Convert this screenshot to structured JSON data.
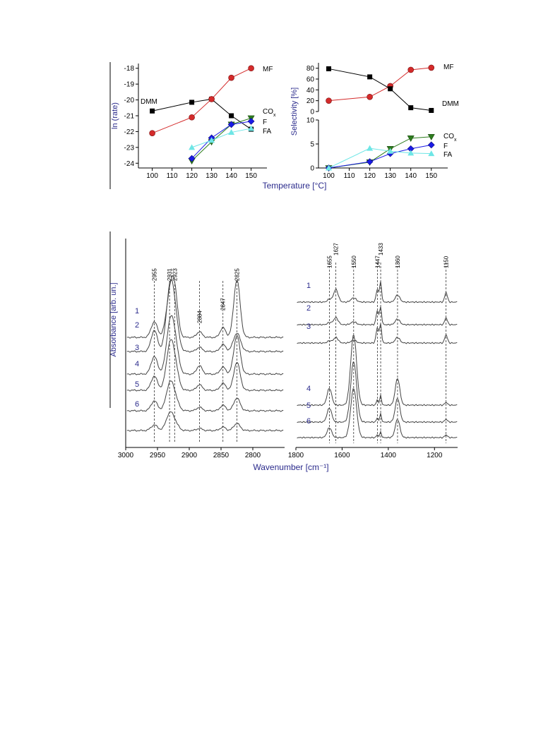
{
  "colors": {
    "axis": "#000000",
    "label": "#2b2b8c",
    "DMM": "#000000",
    "MF": "#d42a2a",
    "CO_x": "#2e7d1e",
    "F": "#1a1ae6",
    "FA": "#6ee6e6",
    "spectrum": "#444444"
  },
  "chart_data": [
    {
      "type": "line",
      "panel": "top-left",
      "xlabel": "Temperature [°C]",
      "ylabel": "ln (rate)",
      "xlim": [
        93,
        158
      ],
      "ylim": [
        -24.3,
        -17.7
      ],
      "xticks": [
        100,
        110,
        120,
        130,
        140,
        150
      ],
      "yticks": [
        -18,
        -19,
        -20,
        -21,
        -22,
        -23,
        -24
      ],
      "series": [
        {
          "name": "DMM",
          "key": "DMM",
          "marker": "square",
          "x": [
            100,
            120,
            130,
            140,
            150
          ],
          "y": [
            -20.7,
            -20.15,
            -19.95,
            -21.0,
            -21.85
          ]
        },
        {
          "name": "MF",
          "key": "MF",
          "marker": "circle",
          "x": [
            100,
            120,
            130,
            140,
            150
          ],
          "y": [
            -22.1,
            -21.1,
            -19.95,
            -18.6,
            -18.0
          ]
        },
        {
          "name": "CO",
          "sub": "x",
          "key": "CO_x",
          "marker": "triangle-down",
          "x": [
            120,
            130,
            140,
            150
          ],
          "y": [
            -23.85,
            -22.65,
            -21.55,
            -21.15
          ]
        },
        {
          "name": "F",
          "key": "F",
          "marker": "diamond",
          "x": [
            120,
            130,
            140,
            150
          ],
          "y": [
            -23.7,
            -22.4,
            -21.55,
            -21.35
          ]
        },
        {
          "name": "FA",
          "key": "FA",
          "marker": "triangle-up",
          "x": [
            120,
            130,
            140,
            150
          ],
          "y": [
            -23.0,
            -22.55,
            -22.05,
            -21.8
          ]
        }
      ]
    },
    {
      "type": "line",
      "panel": "top-right",
      "xlabel": "",
      "ylabel": "Selectivity [%]",
      "xlim": [
        95,
        158
      ],
      "xticks": [
        100,
        110,
        120,
        130,
        140,
        150
      ],
      "upper_ylim": [
        0,
        90
      ],
      "upper_yticks": [
        0,
        20,
        40,
        60,
        80
      ],
      "lower_ylim": [
        0,
        10
      ],
      "lower_yticks": [
        0,
        5,
        10
      ],
      "upper_series": [
        {
          "name": "MF",
          "key": "MF",
          "marker": "circle",
          "x": [
            100,
            120,
            130,
            140,
            150
          ],
          "y": [
            20,
            27,
            47,
            77,
            81
          ]
        },
        {
          "name": "DMM",
          "key": "DMM",
          "marker": "square",
          "x": [
            100,
            120,
            130,
            140,
            150
          ],
          "y": [
            79,
            64,
            42,
            7,
            2
          ]
        }
      ],
      "lower_series": [
        {
          "name": "CO",
          "sub": "x",
          "key": "CO_x",
          "marker": "triangle-down",
          "x": [
            100,
            120,
            130,
            140,
            150
          ],
          "y": [
            0.0,
            1.2,
            4.0,
            6.2,
            6.5
          ]
        },
        {
          "name": "F",
          "key": "F",
          "marker": "diamond",
          "x": [
            100,
            120,
            130,
            140,
            150
          ],
          "y": [
            0.0,
            1.3,
            3.0,
            4.0,
            4.8
          ]
        },
        {
          "name": "FA",
          "key": "FA",
          "marker": "triangle-up",
          "x": [
            100,
            120,
            130,
            140,
            150
          ],
          "y": [
            0.0,
            4.1,
            3.5,
            3.1,
            3.0
          ]
        }
      ]
    },
    {
      "type": "line",
      "panel": "bottom-left",
      "xlabel": "Wavenumber [cm⁻¹]",
      "ylabel": "Absorbance [arb. un.]",
      "xlim": [
        3000,
        2750
      ],
      "xticks": [
        3000,
        2950,
        2900,
        2850,
        2800
      ],
      "peak_labels": [
        2955,
        2931,
        2923,
        2884,
        2847,
        2825
      ],
      "spectra": [
        "1",
        "2",
        "3",
        "4",
        "5",
        "6"
      ]
    },
    {
      "type": "line",
      "panel": "bottom-right",
      "xlabel": "Wavenumber [cm⁻¹]",
      "xlim": [
        1800,
        1100
      ],
      "xticks": [
        1800,
        1600,
        1400,
        1200
      ],
      "peak_labels": [
        1655,
        1627,
        1550,
        1447,
        1433,
        1360,
        1150
      ],
      "spectra": [
        "1",
        "2",
        "3",
        "4",
        "5",
        "6"
      ]
    }
  ]
}
